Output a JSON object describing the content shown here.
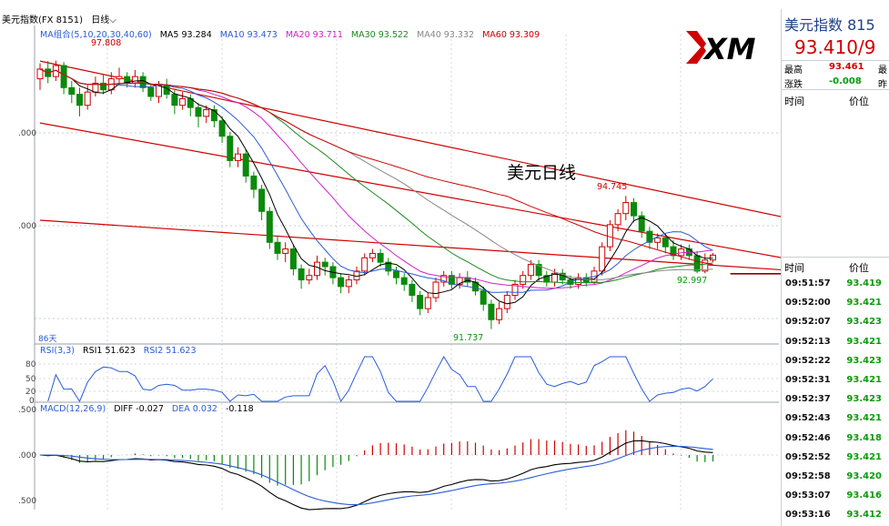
{
  "header": {
    "instrument": "美元指数(FX 8151)",
    "period": "日线",
    "period_arrow": "⌵"
  },
  "ma_legend": {
    "group": "MA组合(5,10,20,30,40,60)",
    "items": [
      {
        "label": "MA5 93.284",
        "color": "#000000"
      },
      {
        "label": "MA10 93.473",
        "color": "#2a5bd7"
      },
      {
        "label": "MA20 93.711",
        "color": "#d020c8"
      },
      {
        "label": "MA30 93.522",
        "color": "#1a8a1a"
      },
      {
        "label": "MA40 93.332",
        "color": "#888888"
      },
      {
        "label": "MA60 93.309",
        "color": "#d00000"
      }
    ]
  },
  "annotations": {
    "high_left": "97.808",
    "high_mid": "94.745",
    "low_bottom": "91.737",
    "low_right": "92.997",
    "chart_label": "美元日线",
    "days": "86天"
  },
  "price_ticks": [
    ".000",
    ".000"
  ],
  "rsi_legend": {
    "name": "RSI(3,3)",
    "rsi1": "RSI1 51.623",
    "rsi2": "RSI2 51.623"
  },
  "rsi_ticks": [
    "80",
    "50",
    "20",
    "0"
  ],
  "macd_legend": {
    "name": "MACD(12,26,9)",
    "diff": "DIFF -0.027",
    "dea": "DEA 0.032",
    "macd": "-0.118"
  },
  "macd_ticks": [
    ".500",
    ".000",
    ".500"
  ],
  "logo_text": "XM",
  "quote_panel": {
    "title": "美元指数 815",
    "price": "93.410/9",
    "high_label": "最高",
    "high_value": "93.461",
    "high_label2": "最",
    "change_label": "涨跌",
    "change_value": "-0.008",
    "change_label2": "昨",
    "col_time": "时间",
    "col_price": "价位",
    "col_time2": "时间",
    "col_price2": "价位"
  },
  "trades": [
    {
      "time": "09:51:57",
      "price": "93.419"
    },
    {
      "time": "09:52:00",
      "price": "93.421"
    },
    {
      "time": "09:52:07",
      "price": "93.423"
    },
    {
      "time": "09:52:13",
      "price": "93.421"
    },
    {
      "time": "09:52:22",
      "price": "93.423"
    },
    {
      "time": "09:52:31",
      "price": "93.421"
    },
    {
      "time": "09:52:37",
      "price": "93.423"
    },
    {
      "time": "09:52:43",
      "price": "93.421"
    },
    {
      "time": "09:52:46",
      "price": "93.418"
    },
    {
      "time": "09:52:52",
      "price": "93.421"
    },
    {
      "time": "09:52:58",
      "price": "93.420"
    },
    {
      "time": "09:53:07",
      "price": "93.416"
    },
    {
      "time": "09:53:16",
      "price": "93.412"
    }
  ],
  "chart_data": {
    "type": "candlestick",
    "instrument": "美元指数",
    "period": "日线",
    "price_range": [
      91.4,
      98.4
    ],
    "candles": [
      [
        97.4,
        97.62,
        97.75,
        97.15
      ],
      [
        97.62,
        97.45,
        97.8,
        97.3
      ],
      [
        97.45,
        97.7,
        97.81,
        97.35
      ],
      [
        97.7,
        97.2,
        97.78,
        97.05
      ],
      [
        97.2,
        97.05,
        97.35,
        96.85
      ],
      [
        97.05,
        96.8,
        97.2,
        96.55
      ],
      [
        96.8,
        97.1,
        97.25,
        96.7
      ],
      [
        97.1,
        97.3,
        97.45,
        97.0
      ],
      [
        97.3,
        97.15,
        97.5,
        97.05
      ],
      [
        97.15,
        97.4,
        97.55,
        97.05
      ],
      [
        97.4,
        97.45,
        97.65,
        97.3
      ],
      [
        97.45,
        97.3,
        97.55,
        97.2
      ],
      [
        97.3,
        97.45,
        97.6,
        97.2
      ],
      [
        97.45,
        97.2,
        97.55,
        97.1
      ],
      [
        97.2,
        97.0,
        97.3,
        96.9
      ],
      [
        97.0,
        97.25,
        97.35,
        96.85
      ],
      [
        97.25,
        97.05,
        97.4,
        96.95
      ],
      [
        97.05,
        96.8,
        97.15,
        96.6
      ],
      [
        96.8,
        96.95,
        97.1,
        96.7
      ],
      [
        96.95,
        96.75,
        97.05,
        96.55
      ],
      [
        96.75,
        96.55,
        96.85,
        96.3
      ],
      [
        96.55,
        96.7,
        96.8,
        96.4
      ],
      [
        96.7,
        96.45,
        96.8,
        96.3
      ],
      [
        96.45,
        96.1,
        96.55,
        95.95
      ],
      [
        96.1,
        95.55,
        96.2,
        95.4
      ],
      [
        95.55,
        95.7,
        95.85,
        95.4
      ],
      [
        95.7,
        95.2,
        95.8,
        95.05
      ],
      [
        95.2,
        94.9,
        95.3,
        94.7
      ],
      [
        94.9,
        94.4,
        95.0,
        94.2
      ],
      [
        94.4,
        93.7,
        94.5,
        93.55
      ],
      [
        93.7,
        93.45,
        93.85,
        93.3
      ],
      [
        93.45,
        93.55,
        93.7,
        93.25
      ],
      [
        93.55,
        93.1,
        93.65,
        92.95
      ],
      [
        93.1,
        92.85,
        93.2,
        92.65
      ],
      [
        92.85,
        92.95,
        93.1,
        92.75
      ],
      [
        92.95,
        93.25,
        93.4,
        92.85
      ],
      [
        93.25,
        93.15,
        93.35,
        92.95
      ],
      [
        93.15,
        92.9,
        93.25,
        92.75
      ],
      [
        92.9,
        92.7,
        93.0,
        92.55
      ],
      [
        92.7,
        92.85,
        92.95,
        92.55
      ],
      [
        92.85,
        93.05,
        93.15,
        92.75
      ],
      [
        93.05,
        93.35,
        93.45,
        92.95
      ],
      [
        93.35,
        93.45,
        93.55,
        93.25
      ],
      [
        93.45,
        93.25,
        93.55,
        93.15
      ],
      [
        93.25,
        93.05,
        93.35,
        92.95
      ],
      [
        93.05,
        92.9,
        93.15,
        92.75
      ],
      [
        92.9,
        92.75,
        93.0,
        92.6
      ],
      [
        92.75,
        92.5,
        92.85,
        92.35
      ],
      [
        92.5,
        92.2,
        92.6,
        92.05
      ],
      [
        92.2,
        92.45,
        92.55,
        92.1
      ],
      [
        92.45,
        92.8,
        92.9,
        92.35
      ],
      [
        92.8,
        92.95,
        93.05,
        92.7
      ],
      [
        92.95,
        92.75,
        93.05,
        92.65
      ],
      [
        92.75,
        92.9,
        93.0,
        92.65
      ],
      [
        92.9,
        92.8,
        93.05,
        92.7
      ],
      [
        92.8,
        92.6,
        92.9,
        92.5
      ],
      [
        92.6,
        92.3,
        92.7,
        92.15
      ],
      [
        92.3,
        91.95,
        92.4,
        91.74
      ],
      [
        91.95,
        92.2,
        92.35,
        91.85
      ],
      [
        92.2,
        92.5,
        92.6,
        92.1
      ],
      [
        92.5,
        92.75,
        92.85,
        92.4
      ],
      [
        92.75,
        92.95,
        93.05,
        92.65
      ],
      [
        92.95,
        93.2,
        93.3,
        92.85
      ],
      [
        93.2,
        92.95,
        93.3,
        92.8
      ],
      [
        92.95,
        92.8,
        93.05,
        92.7
      ],
      [
        92.8,
        93.0,
        93.1,
        92.7
      ],
      [
        93.0,
        92.85,
        93.1,
        92.75
      ],
      [
        92.85,
        92.75,
        92.95,
        92.65
      ],
      [
        92.75,
        92.9,
        93.0,
        92.65
      ],
      [
        92.9,
        92.8,
        93.0,
        92.7
      ],
      [
        92.8,
        93.05,
        93.15,
        92.75
      ],
      [
        93.05,
        93.6,
        93.7,
        92.95
      ],
      [
        93.6,
        94.1,
        94.2,
        93.5
      ],
      [
        94.1,
        94.35,
        94.45,
        93.95
      ],
      [
        94.35,
        94.6,
        94.75,
        94.2
      ],
      [
        94.6,
        94.3,
        94.7,
        94.15
      ],
      [
        94.3,
        93.95,
        94.4,
        93.8
      ],
      [
        93.95,
        93.7,
        94.05,
        93.55
      ],
      [
        93.7,
        93.8,
        93.9,
        93.55
      ],
      [
        93.8,
        93.6,
        93.9,
        93.45
      ],
      [
        93.6,
        93.4,
        93.75,
        93.3
      ],
      [
        93.4,
        93.55,
        93.65,
        93.3
      ],
      [
        93.55,
        93.4,
        93.65,
        93.3
      ],
      [
        93.4,
        93.05,
        93.5,
        93.0
      ],
      [
        93.05,
        93.3,
        93.45,
        93.0
      ],
      [
        93.3,
        93.41,
        93.46,
        93.25
      ]
    ],
    "moving_averages": [
      {
        "name": "MA5",
        "value": 93.284,
        "color": "#000000"
      },
      {
        "name": "MA10",
        "value": 93.473,
        "color": "#2a5bd7"
      },
      {
        "name": "MA20",
        "value": 93.711,
        "color": "#d020c8"
      },
      {
        "name": "MA30",
        "value": 93.522,
        "color": "#1a8a1a"
      },
      {
        "name": "MA40",
        "value": 93.332,
        "color": "#888888"
      },
      {
        "name": "MA60",
        "value": 93.309,
        "color": "#d00000"
      }
    ],
    "trend_lines": [
      {
        "from": [
          0,
          96.4
        ],
        "to": [
          85,
          92.55
        ],
        "color": "#d00000"
      },
      {
        "from": [
          0,
          94.2
        ],
        "to": [
          71,
          92.95
        ],
        "color": "#d00000"
      },
      {
        "from": [
          0,
          97.8
        ],
        "to": [
          85,
          93.35
        ],
        "color": "#d00000"
      }
    ],
    "support_line": {
      "from": [
        78,
        92.99
      ],
      "to": [
        91,
        92.99
      ],
      "color": "#8b0000"
    },
    "rsi": {
      "rsi1": 51.623,
      "rsi2": 51.623,
      "levels": [
        80,
        50,
        20,
        0
      ]
    },
    "macd": {
      "diff": -0.027,
      "dea": 0.032,
      "macd": -0.118
    }
  }
}
